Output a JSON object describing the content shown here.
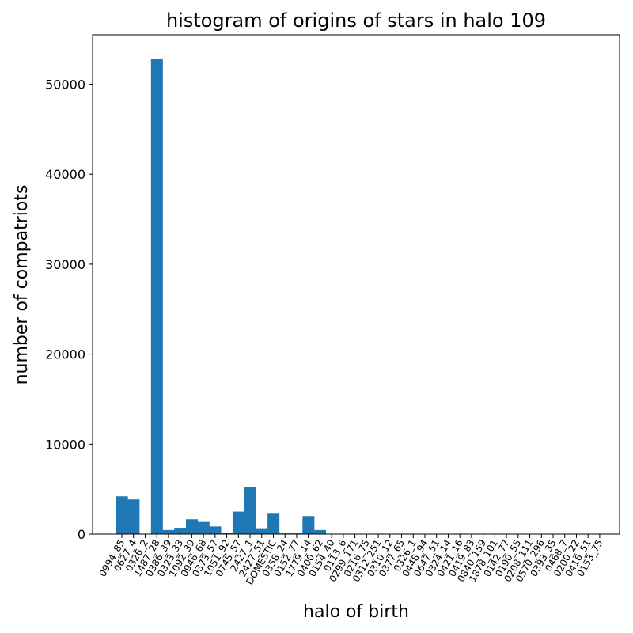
{
  "chart_data": {
    "type": "bar",
    "title": "histogram of origins of stars in halo 109",
    "xlabel": "halo of birth",
    "ylabel": "number of compatriots",
    "ylim": [
      0,
      55500
    ],
    "yticks": [
      0,
      10000,
      20000,
      30000,
      40000,
      50000
    ],
    "grid": false,
    "bar_color": "#1f77b4",
    "categories": [
      "0994_85",
      "0627_4",
      "0326_2",
      "1487_28",
      "0386_39",
      "0323_33",
      "1092_39",
      "0946_68",
      "0373_57",
      "1051_92",
      "0745_57",
      "2427_1",
      "2427_51",
      "DOMESTIC",
      "0358_24",
      "0152_77",
      "1779_14",
      "0400_62",
      "0154_40",
      "0113_6",
      "0299_171",
      "0216_75",
      "0312_251",
      "0310_12",
      "0377_65",
      "0326_1",
      "0448_94",
      "0647_51",
      "0324_14",
      "0421_16",
      "0419_83",
      "0840_159",
      "1878_101",
      "0142_77",
      "0190_55",
      "0208_111",
      "0570_296",
      "0393_35",
      "0468_7",
      "0200_22",
      "0416_51",
      "0153_75"
    ],
    "values": [
      4200,
      3850,
      0,
      52800,
      450,
      700,
      1650,
      1350,
      850,
      150,
      2500,
      5250,
      650,
      2350,
      80,
      80,
      2000,
      450,
      0,
      0,
      0,
      0,
      50,
      0,
      50,
      50,
      0,
      0,
      0,
      50,
      0,
      0,
      0,
      0,
      0,
      0,
      0,
      0,
      0,
      0,
      0,
      0
    ]
  }
}
